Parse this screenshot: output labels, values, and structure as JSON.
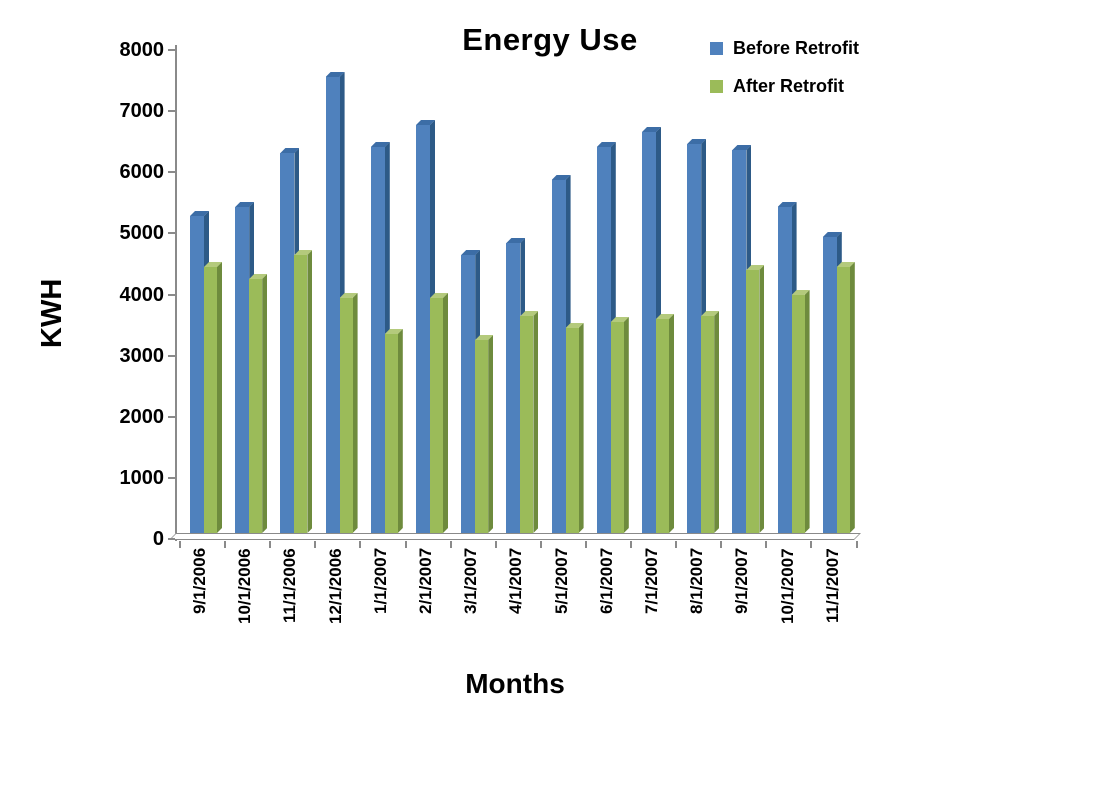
{
  "title": "Energy Use",
  "y_axis_label": "KWH",
  "x_axis_label": "Months",
  "chart_data": {
    "type": "bar",
    "title": "Energy Use",
    "xlabel": "Months",
    "ylabel": "KWH",
    "ylim": [
      0,
      8000
    ],
    "ytick_interval": 1000,
    "grid": false,
    "legend_position": "top-right",
    "bar_style": "3d-bevel",
    "background_color": "#ffffff",
    "axis_color": "#8a8a8a",
    "text_color": "#000000",
    "categories": [
      "9/1/2006",
      "10/1/2006",
      "11/1/2006",
      "12/1/2006",
      "1/1/2007",
      "2/1/2007",
      "3/1/2007",
      "4/1/2007",
      "5/1/2007",
      "6/1/2007",
      "7/1/2007",
      "8/1/2007",
      "9/1/2007",
      "10/1/2007",
      "11/1/2007"
    ],
    "series": [
      {
        "name": "Before Retrofit",
        "color": "#4f81bd",
        "color_side": "#2d5a87",
        "color_top": "#3c6da6",
        "values": [
          5250,
          5400,
          6300,
          7550,
          6400,
          6750,
          4600,
          4800,
          5850,
          6400,
          6650,
          6450,
          6350,
          5400,
          4900
        ]
      },
      {
        "name": "After Retrofit",
        "color": "#9bbb59",
        "color_side": "#6e8b3d",
        "color_top": "#b4ca7c",
        "values": [
          4400,
          4200,
          4600,
          3900,
          3300,
          3900,
          3200,
          3600,
          3400,
          3500,
          3550,
          3600,
          4350,
          3950,
          4400
        ]
      }
    ]
  }
}
